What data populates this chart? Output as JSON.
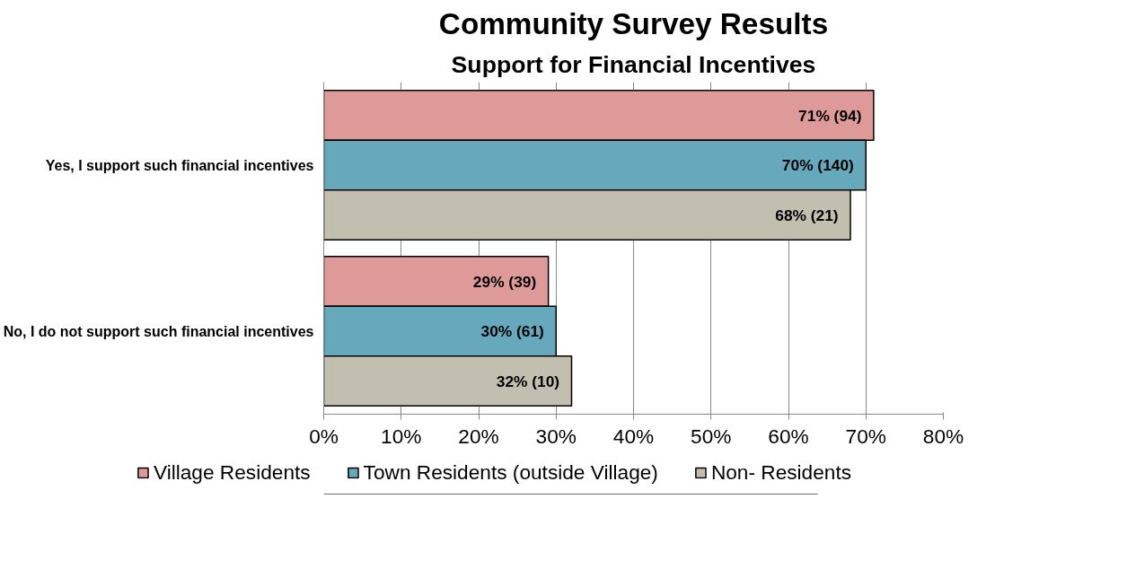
{
  "chart_data": {
    "type": "bar",
    "orientation": "horizontal",
    "title": "Community Survey Results",
    "subtitle": "Support for Financial Incentives",
    "categories": [
      "Yes, I support such financial incentives",
      "No, I do not support such financial incentives"
    ],
    "series": [
      {
        "name": "Village Residents",
        "color": "#de9a99",
        "values": [
          71,
          29
        ],
        "value_labels": [
          "71%  (94)",
          "29%  (39)"
        ]
      },
      {
        "name": "Town Residents (outside Village)",
        "color": "#67a9bc",
        "values": [
          70,
          30
        ],
        "value_labels": [
          "70%  (140)",
          "30%  (61)"
        ]
      },
      {
        "name": "Non- Residents",
        "color": "#c3bfb0",
        "values": [
          68,
          32
        ],
        "value_labels": [
          "68%  (21)",
          "32%  (10)"
        ]
      }
    ],
    "xlim": [
      0,
      80
    ],
    "xticks": [
      {
        "value": 0,
        "label": "0%"
      },
      {
        "value": 10,
        "label": "10%"
      },
      {
        "value": 20,
        "label": "20%"
      },
      {
        "value": 30,
        "label": "30%"
      },
      {
        "value": 40,
        "label": "40%"
      },
      {
        "value": 50,
        "label": "50%"
      },
      {
        "value": 60,
        "label": "60%"
      },
      {
        "value": 70,
        "label": "70%"
      },
      {
        "value": 80,
        "label": "80%"
      }
    ],
    "grid": "x",
    "legend": "bottom"
  }
}
